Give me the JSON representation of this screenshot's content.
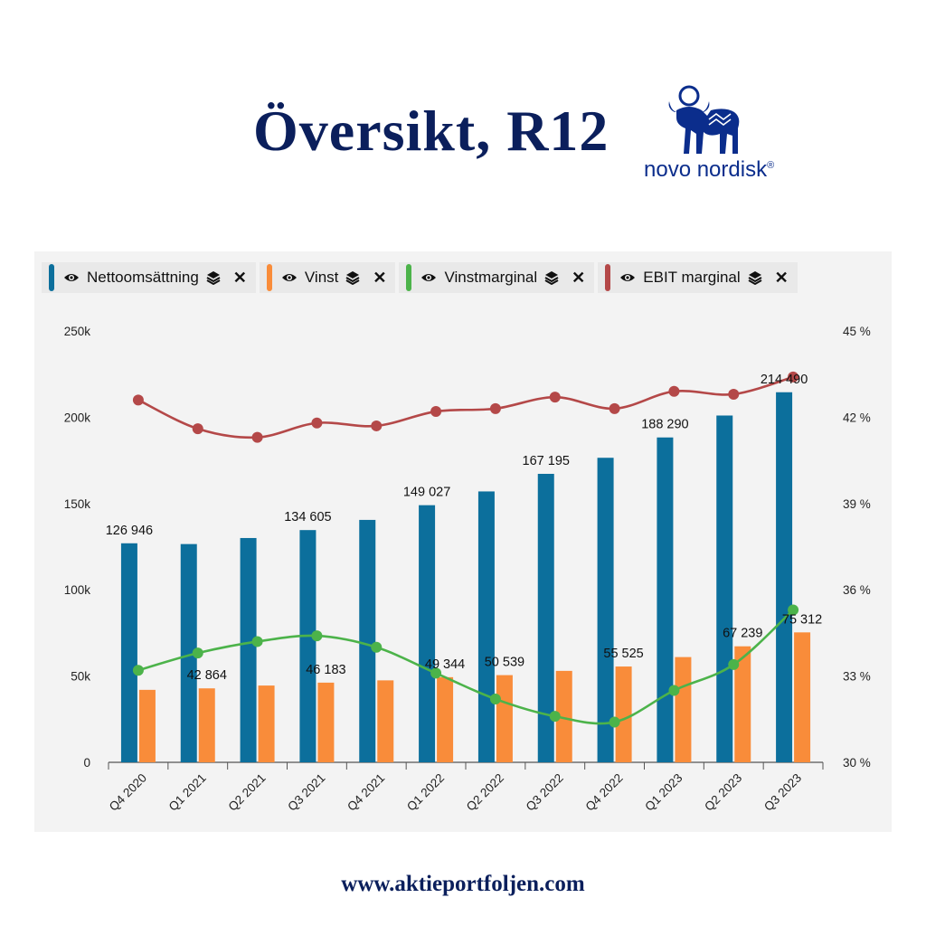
{
  "title": "Översikt, R12",
  "logo": {
    "text": "novo nordisk",
    "registered": "®"
  },
  "footer": "www.aktieportfoljen.com",
  "colors": {
    "title": "#0b1f5c",
    "netto": "#0c6f9c",
    "vinst": "#f98c3a",
    "vinstmarginal": "#4cb34a",
    "ebit": "#b44848",
    "panel": "#f3f3f3"
  },
  "legend": [
    {
      "label": "Nettoomsättning",
      "color": "#0c6f9c",
      "icons": [
        "eye-icon",
        "stack-icon",
        "close-icon"
      ]
    },
    {
      "label": "Vinst",
      "color": "#f98c3a",
      "icons": [
        "eye-icon",
        "stack-icon",
        "close-icon"
      ]
    },
    {
      "label": "Vinstmarginal",
      "color": "#4cb34a",
      "icons": [
        "eye-icon",
        "stack-icon",
        "close-icon"
      ]
    },
    {
      "label": "EBIT marginal",
      "color": "#b44848",
      "icons": [
        "eye-icon",
        "stack-icon",
        "close-icon"
      ]
    }
  ],
  "chart_data": {
    "type": "bar",
    "categories": [
      "Q4 2020",
      "Q1 2021",
      "Q2 2021",
      "Q3 2021",
      "Q4 2021",
      "Q1 2022",
      "Q2 2022",
      "Q3 2022",
      "Q4 2022",
      "Q1 2023",
      "Q2 2023",
      "Q3 2023"
    ],
    "left_axis": {
      "ylim": [
        0,
        250000
      ],
      "ticks": [
        "0",
        "50k",
        "100k",
        "150k",
        "200k",
        "250k"
      ]
    },
    "right_axis": {
      "ylim": [
        30,
        45
      ],
      "ticks": [
        "30 %",
        "33 %",
        "36 %",
        "39 %",
        "42 %",
        "45 %"
      ]
    },
    "series": [
      {
        "name": "Nettoomsättning",
        "type": "bar",
        "axis": "left",
        "values": [
          126946,
          126500,
          130000,
          134605,
          140500,
          149027,
          157000,
          167195,
          176500,
          188290,
          201000,
          214490
        ]
      },
      {
        "name": "Vinst",
        "type": "bar",
        "axis": "left",
        "values": [
          42000,
          42864,
          44500,
          46183,
          47500,
          49344,
          50539,
          53000,
          55525,
          61000,
          67239,
          75312
        ]
      },
      {
        "name": "Vinstmarginal",
        "type": "line",
        "axis": "right",
        "values": [
          33.2,
          33.8,
          34.2,
          34.4,
          34.0,
          33.1,
          32.2,
          31.6,
          31.4,
          32.5,
          33.4,
          35.3
        ]
      },
      {
        "name": "EBIT marginal",
        "type": "line",
        "axis": "right",
        "values": [
          42.6,
          41.6,
          41.3,
          41.8,
          41.7,
          42.2,
          42.3,
          42.7,
          42.3,
          42.9,
          42.8,
          43.4
        ]
      }
    ],
    "data_labels": [
      {
        "series": "Nettoomsättning",
        "index": 0,
        "text": "126 946"
      },
      {
        "series": "Nettoomsättning",
        "index": 3,
        "text": "134 605"
      },
      {
        "series": "Nettoomsättning",
        "index": 5,
        "text": "149 027"
      },
      {
        "series": "Nettoomsättning",
        "index": 7,
        "text": "167 195"
      },
      {
        "series": "Nettoomsättning",
        "index": 9,
        "text": "188 290"
      },
      {
        "series": "Nettoomsättning",
        "index": 11,
        "text": "214 490"
      },
      {
        "series": "Vinst",
        "index": 1,
        "text": "42 864"
      },
      {
        "series": "Vinst",
        "index": 3,
        "text": "46 183"
      },
      {
        "series": "Vinst",
        "index": 5,
        "text": "49 344"
      },
      {
        "series": "Vinst",
        "index": 6,
        "text": "50 539"
      },
      {
        "series": "Vinst",
        "index": 8,
        "text": "55 525"
      },
      {
        "series": "Vinst",
        "index": 10,
        "text": "67 239"
      },
      {
        "series": "Vinst",
        "index": 11,
        "text": "75 312"
      }
    ],
    "legend_position": "top-left",
    "grid": false
  }
}
